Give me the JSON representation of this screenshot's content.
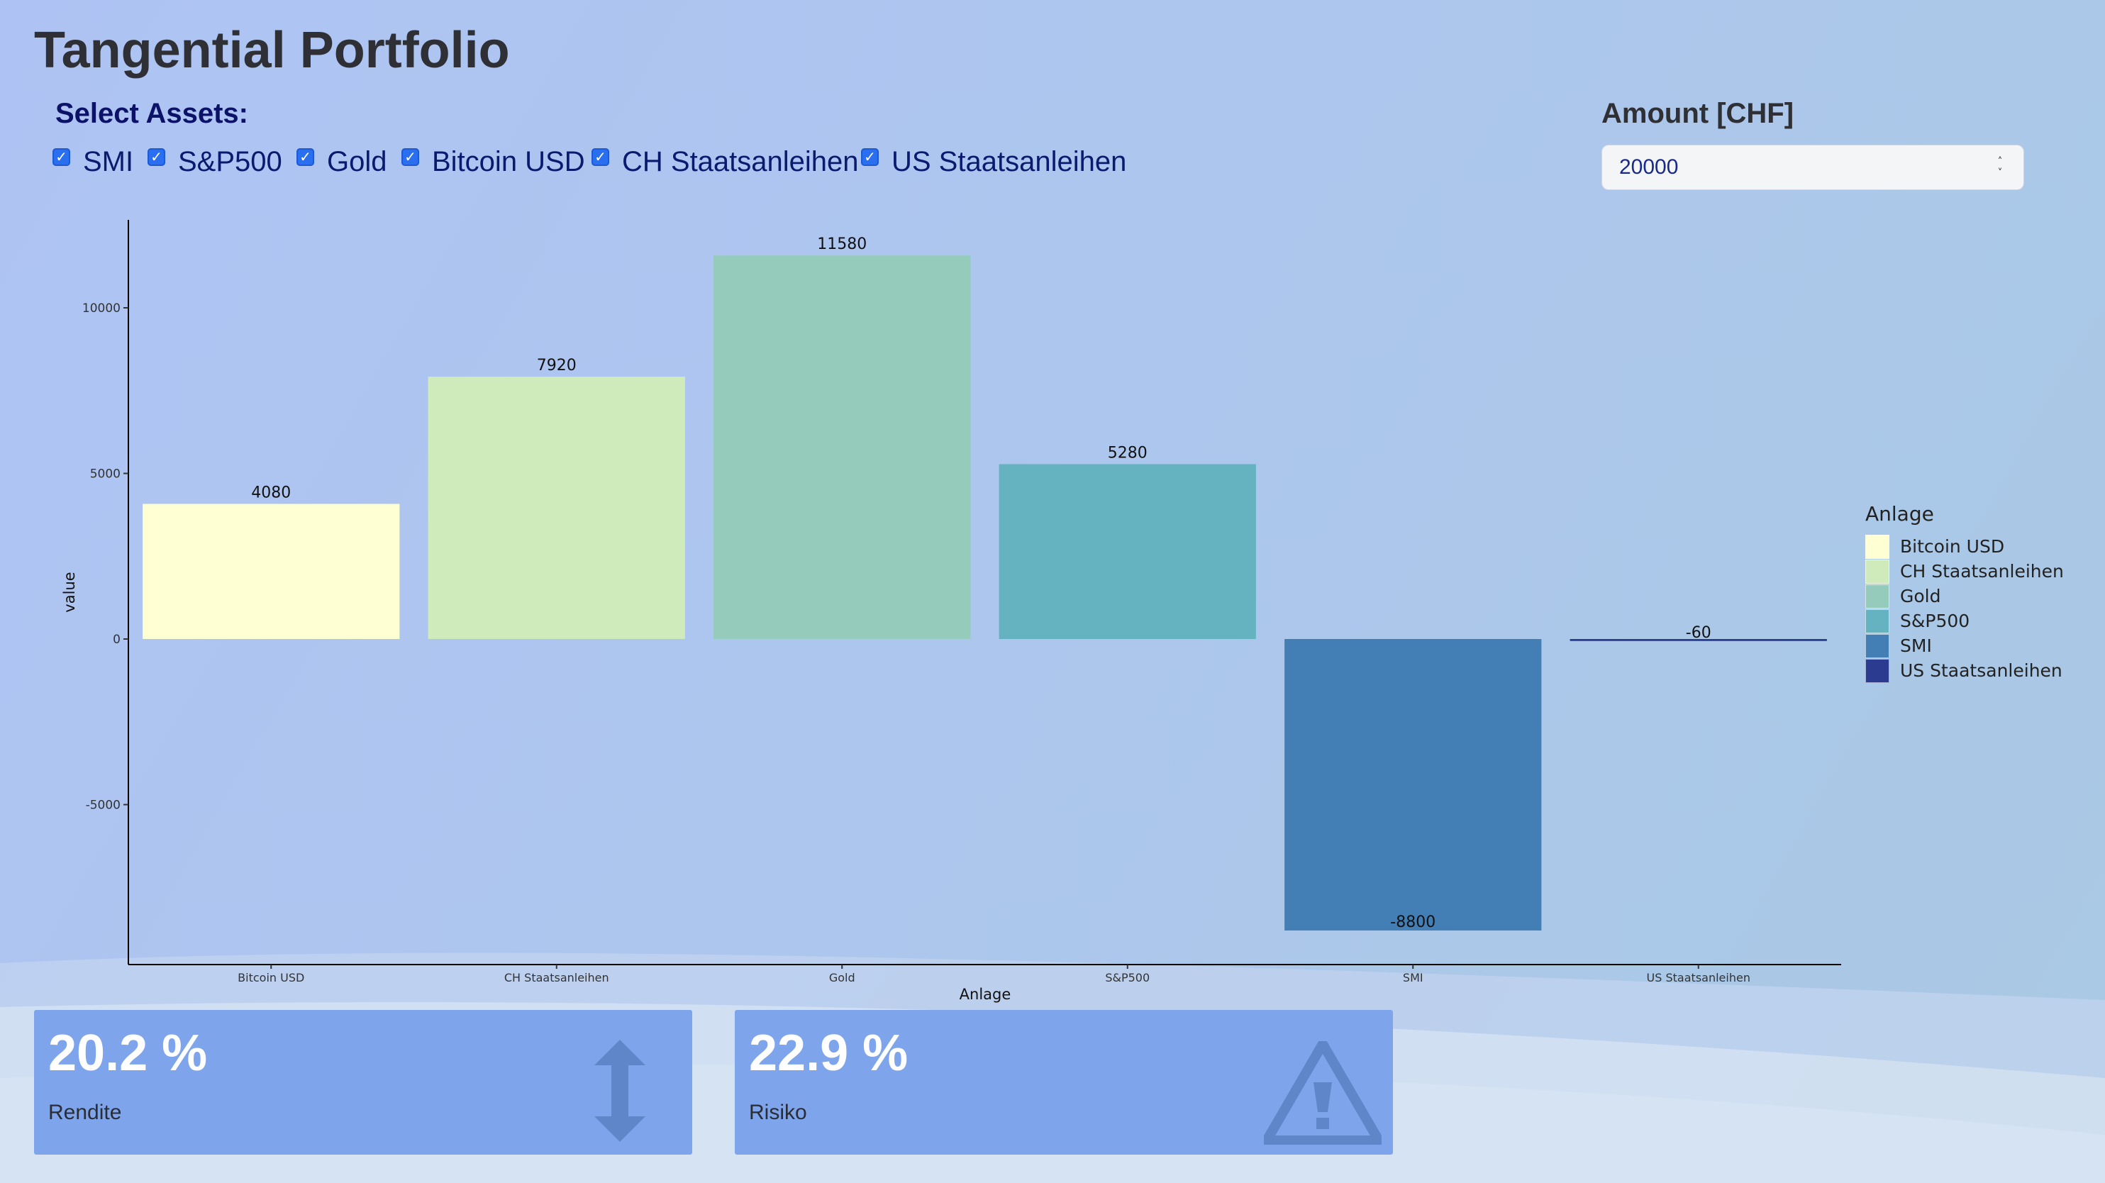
{
  "page": {
    "title": "Tangential Portfolio"
  },
  "asset_selector": {
    "label": "Select Assets:",
    "options": [
      {
        "label": "SMI",
        "checked": true
      },
      {
        "label": "S&P500",
        "checked": true
      },
      {
        "label": "Gold",
        "checked": true
      },
      {
        "label": "Bitcoin USD",
        "checked": true
      },
      {
        "label": "CH Staatsanleihen",
        "checked": true
      },
      {
        "label": "US Staatsanleihen",
        "checked": true
      }
    ]
  },
  "amount": {
    "label": "Amount [CHF]",
    "value": "20000"
  },
  "chart_data": {
    "type": "bar",
    "categories": [
      "Bitcoin USD",
      "CH Staatsanleihen",
      "Gold",
      "S&P500",
      "SMI",
      "US Staatsanleihen"
    ],
    "values": [
      4080,
      7920,
      11580,
      5280,
      -8800,
      -60
    ],
    "data_labels": [
      "4080",
      "7920",
      "11580",
      "5280",
      "-8800",
      "-60"
    ],
    "colors": [
      "#ffffd4",
      "#d0ebbb",
      "#94cbbb",
      "#65b3c0",
      "#437fb5",
      "#2b3b8f"
    ],
    "xlabel": "Anlage",
    "ylabel": "value",
    "yticks": [
      -5000,
      0,
      5000,
      10000
    ],
    "ytick_labels": [
      "-5000",
      "0",
      "5000",
      "10000"
    ],
    "ylim": [
      -9800,
      12600
    ],
    "grid": false,
    "legend": {
      "title": "Anlage",
      "placement": "right",
      "entries": [
        "Bitcoin USD",
        "CH Staatsanleihen",
        "Gold",
        "S&P500",
        "SMI",
        "US Staatsanleihen"
      ]
    }
  },
  "kpis": {
    "rendite": {
      "value": "20.2 %",
      "label": "Rendite",
      "icon": "arrows-vertical-icon"
    },
    "risiko": {
      "value": "22.9 %",
      "label": "Risiko",
      "icon": "warning-icon"
    }
  },
  "colors": {
    "kpi_box": "#7ea5ec",
    "accent_checkbox": "#2a6ff0",
    "kpi_icon": "#5f86c8"
  }
}
